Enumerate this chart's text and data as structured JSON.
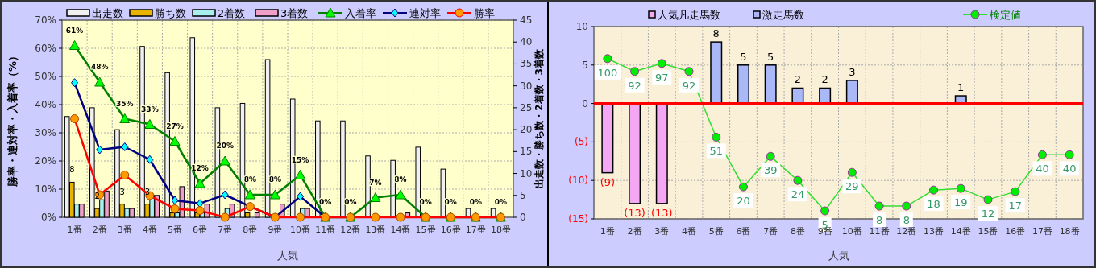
{
  "chart_data": [
    {
      "type": "bar",
      "xlabel": "人気",
      "ylabel": "勝率・連対率・入着率（%）",
      "y2label": "出走数・勝ち数・2着数・3着数",
      "categories": [
        "1番",
        "2番",
        "3番",
        "4番",
        "5番",
        "6番",
        "7番",
        "8番",
        "9番",
        "10番",
        "11番",
        "12番",
        "13番",
        "14番",
        "15番",
        "16番",
        "17番",
        "18番"
      ],
      "ylim": [
        0,
        70
      ],
      "yticks": [
        {
          "value": 0,
          "label": "0%"
        },
        {
          "value": 10,
          "label": "10%"
        },
        {
          "value": 20,
          "label": "20%"
        },
        {
          "value": 30,
          "label": "30%"
        },
        {
          "value": 40,
          "label": "40%"
        },
        {
          "value": 50,
          "label": "50%"
        },
        {
          "value": 60,
          "label": "60%"
        },
        {
          "value": 70,
          "label": "70%"
        }
      ],
      "y2lim": [
        0,
        45
      ],
      "y2ticks": [
        0,
        5,
        10,
        15,
        20,
        25,
        30,
        35,
        40,
        45
      ],
      "grid": true,
      "legend": "top",
      "series": [
        {
          "name": "出走数",
          "axis": "y2",
          "color": "#f0f0f0",
          "values": [
            23,
            25,
            20,
            39,
            33,
            41,
            25,
            26,
            36,
            27,
            22,
            22,
            14,
            13,
            16,
            11,
            2,
            2
          ]
        },
        {
          "name": "勝ち数",
          "axis": "y2",
          "color": "#e8b400",
          "values": [
            8,
            2,
            3,
            3,
            1,
            1,
            0,
            1,
            0,
            0,
            0,
            0,
            0,
            0,
            0,
            0,
            0,
            0
          ],
          "value_labels": [
            "8",
            "2",
            "3",
            "3",
            null,
            null,
            null,
            null,
            null,
            null,
            null,
            null,
            null,
            null,
            null,
            null,
            null,
            null
          ]
        },
        {
          "name": "2着数",
          "axis": "y2",
          "color": "#a8f0f0",
          "values": [
            3,
            4,
            2,
            5,
            1,
            1,
            2,
            0,
            0,
            2,
            0,
            0,
            0,
            0,
            0,
            0,
            0,
            0
          ]
        },
        {
          "name": "3着数",
          "axis": "y2",
          "color": "#f0a0c8",
          "values": [
            3,
            6,
            2,
            5,
            7,
            3,
            3,
            1,
            3,
            2,
            0,
            0,
            0,
            1,
            0,
            0,
            0,
            0
          ]
        },
        {
          "name": "入着率",
          "type": "line",
          "axis": "y",
          "color": "#008000",
          "marker": "triangle",
          "values": [
            61,
            48,
            35,
            33,
            27,
            12,
            20,
            8,
            8,
            15,
            0,
            0,
            7,
            8,
            0,
            0,
            0,
            0
          ],
          "value_labels": [
            "61%",
            "48%",
            "35%",
            "33%",
            "27%",
            "12%",
            "20%",
            "8%",
            "8%",
            "15%",
            "0%",
            "0%",
            "7%",
            "8%",
            "0%",
            "0%",
            "0%",
            "0%"
          ]
        },
        {
          "name": "連対率",
          "type": "line",
          "axis": "y",
          "color": "#000080",
          "marker": "diamond",
          "values": [
            47.8,
            24,
            25,
            20.5,
            6,
            4.9,
            8,
            3.8,
            0,
            7.4,
            0,
            null,
            null,
            null,
            null,
            null,
            null,
            null
          ]
        },
        {
          "name": "勝率",
          "type": "line",
          "axis": "y",
          "color": "#ff0000",
          "marker": "circle",
          "values": [
            35,
            8,
            15,
            7.7,
            3,
            2.4,
            0,
            3.8,
            0,
            0,
            0,
            0,
            0,
            0,
            0,
            0,
            0,
            0
          ]
        }
      ]
    },
    {
      "type": "bar",
      "xlabel": "人気",
      "stacked": true,
      "categories": [
        "1番",
        "2番",
        "3番",
        "4番",
        "5番",
        "6番",
        "7番",
        "8番",
        "9番",
        "10番",
        "11番",
        "12番",
        "13番",
        "14番",
        "15番",
        "16番",
        "17番",
        "18番"
      ],
      "ylim": [
        -15,
        10
      ],
      "yticks": [
        {
          "value": -15,
          "label": "(15)"
        },
        {
          "value": -10,
          "label": "(10)"
        },
        {
          "value": -5,
          "label": "(5)"
        },
        0,
        5,
        10
      ],
      "y2lim": [
        0,
        120
      ],
      "tick_labels": "xy",
      "grid": true,
      "legend": "top",
      "ref_lines": [
        {
          "axis": "y",
          "value": 0,
          "color": "#ff0000"
        }
      ],
      "series": [
        {
          "name": "人気凡走馬数",
          "color": "#f4a8f4",
          "values": [
            -9,
            -13,
            -13,
            null,
            null,
            null,
            null,
            null,
            null,
            null,
            null,
            null,
            null,
            null,
            null,
            null,
            null,
            null
          ],
          "value_labels": [
            "(9)",
            "(13)",
            "(13)",
            null,
            null,
            null,
            null,
            null,
            null,
            null,
            null,
            null,
            null,
            null,
            null,
            null,
            null,
            null
          ]
        },
        {
          "name": "激走馬数",
          "color": "#aab8f8",
          "values": [
            null,
            null,
            null,
            null,
            8,
            5,
            5,
            2,
            2,
            3,
            null,
            null,
            null,
            1,
            null,
            null,
            null,
            null
          ],
          "value_labels": [
            null,
            null,
            null,
            null,
            "8",
            "5",
            "5",
            "2",
            "2",
            "3",
            null,
            null,
            null,
            "1",
            null,
            null,
            null,
            null
          ]
        },
        {
          "name": "検定値",
          "type": "line",
          "axis": "y2",
          "color": "#33dd33",
          "marker": "circle",
          "values": [
            100,
            92,
            97,
            92,
            51,
            20,
            39,
            24,
            5,
            29,
            8,
            8,
            18,
            19,
            12,
            17,
            40,
            40
          ],
          "value_labels": [
            "100",
            "92",
            "97",
            "92",
            "51",
            "20",
            "39",
            "24",
            "5",
            "29",
            "8",
            "8",
            "18",
            "19",
            "12",
            "17",
            "40",
            "40"
          ]
        }
      ]
    }
  ]
}
